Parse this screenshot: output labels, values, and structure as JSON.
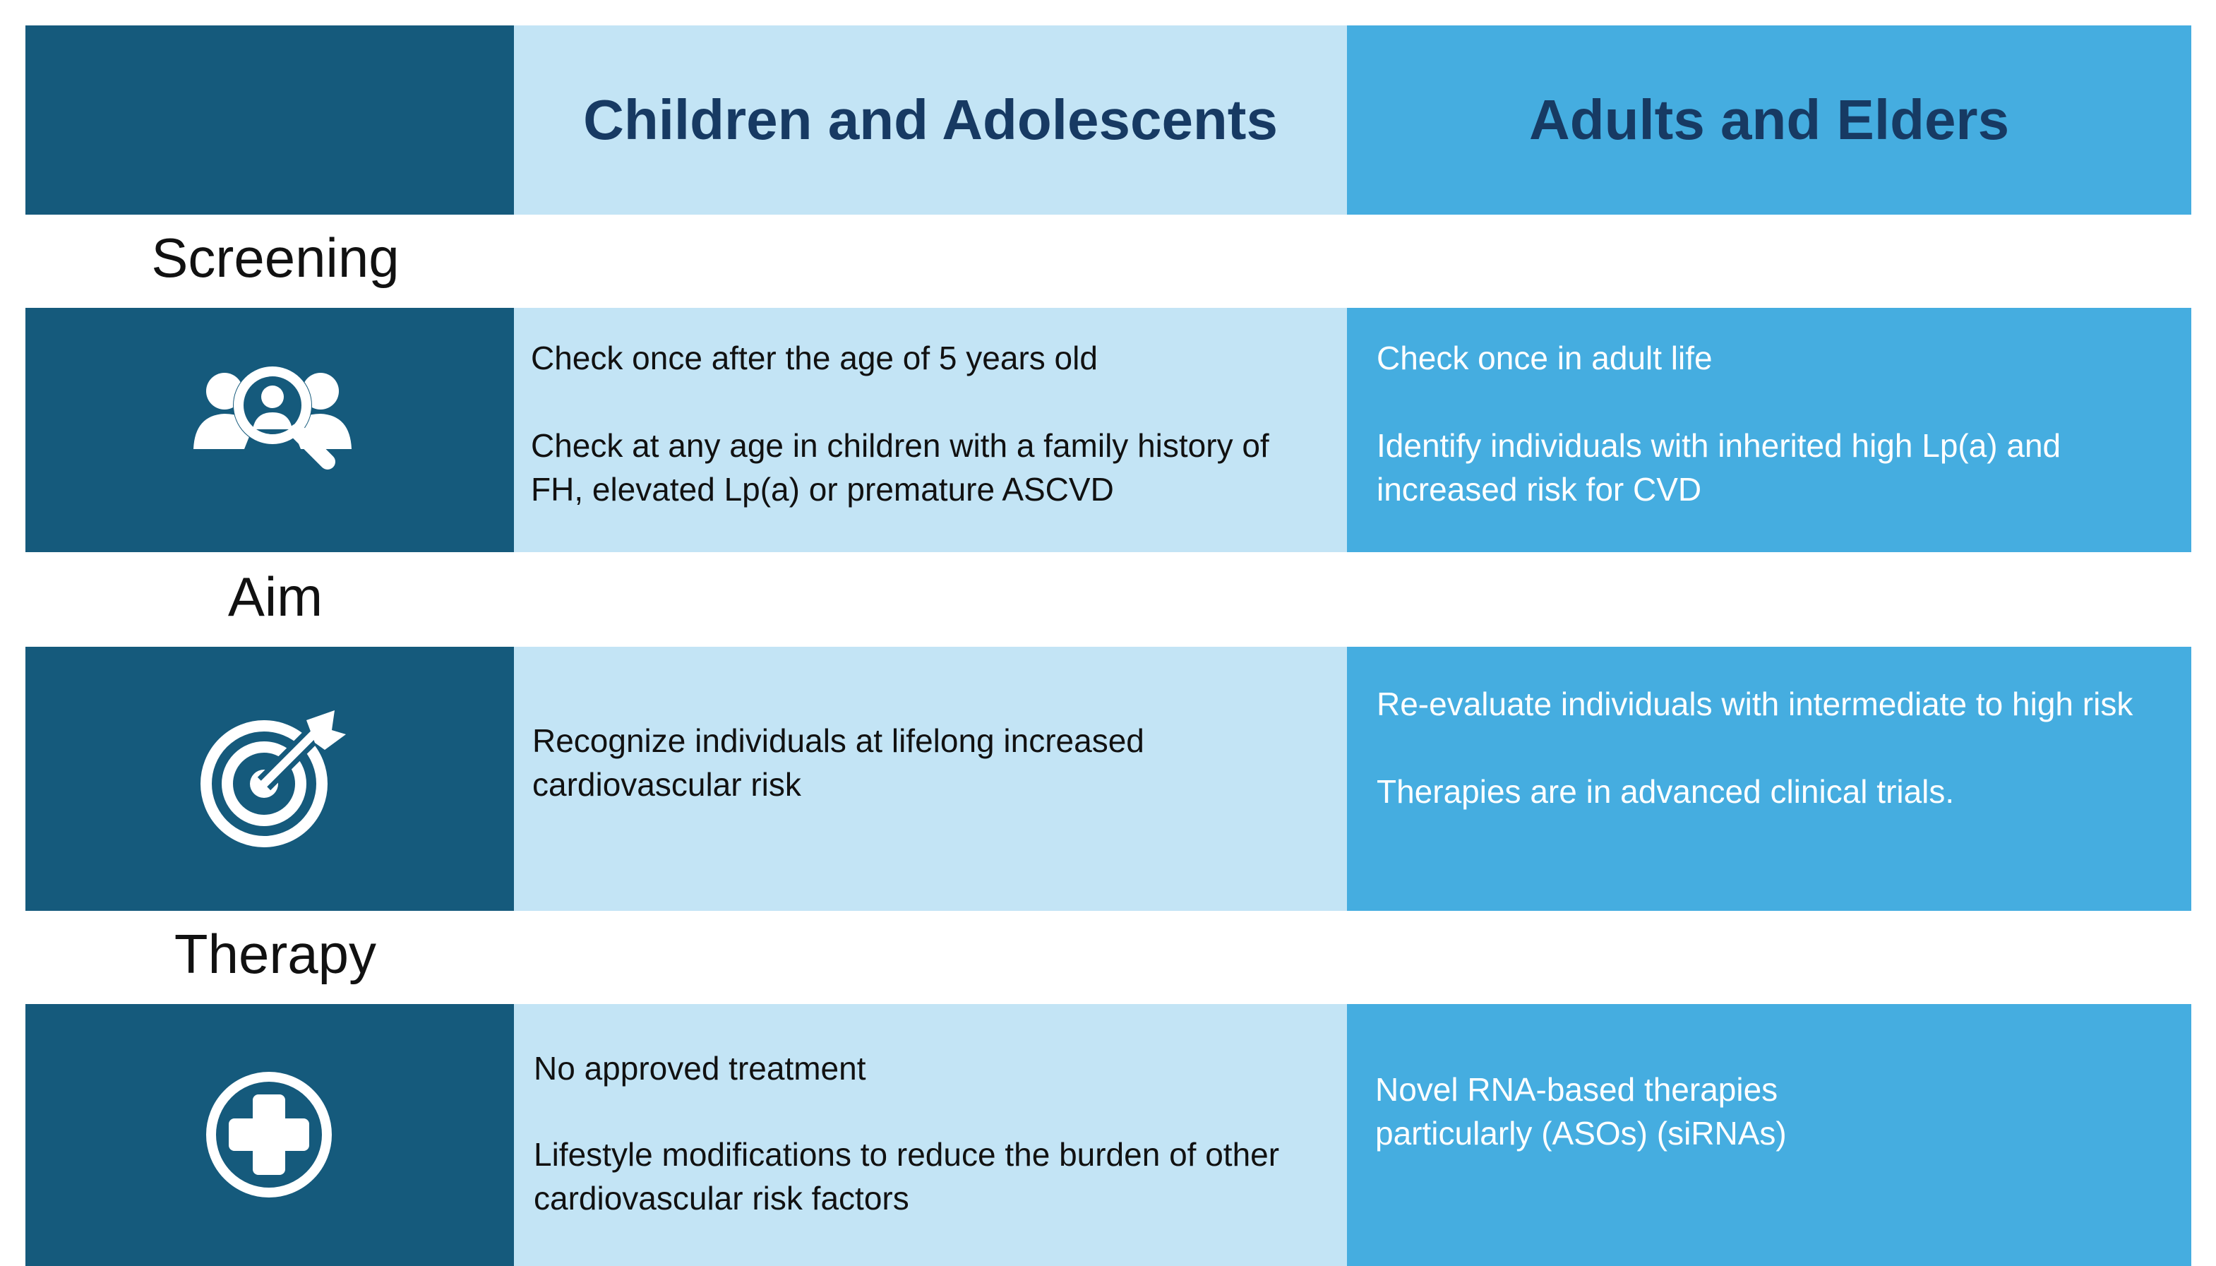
{
  "header": {
    "col_children": "Children and Adolescents",
    "col_adults": "Adults and Elders"
  },
  "colors": {
    "navy": "#155a7c",
    "light_blue": "#c3e4f5",
    "mid_blue": "#45ade0",
    "header_text": "#173a63"
  },
  "sections": [
    {
      "label": "Screening",
      "icon": "people-search-icon",
      "children": [
        "Check once after the age of 5 years old",
        "Check at any age in children with a family history of FH, elevated Lp(a) or premature ASCVD"
      ],
      "adults": [
        "Check once in adult life",
        "Identify individuals with inherited high Lp(a) and increased risk for CVD"
      ]
    },
    {
      "label": "Aim",
      "icon": "target-icon",
      "children": [
        "Recognize individuals at lifelong increased cardiovascular risk"
      ],
      "adults": [
        "Re-evaluate individuals with intermediate to high risk",
        "Therapies are in advanced clinical trials."
      ]
    },
    {
      "label": "Therapy",
      "icon": "medical-cross-icon",
      "children": [
        "No approved treatment",
        "Lifestyle modifications to reduce the burden of other cardiovascular risk factors"
      ],
      "adults": [
        "Novel RNA-based therapies particularly (ASOs) (siRNAs)"
      ]
    }
  ]
}
